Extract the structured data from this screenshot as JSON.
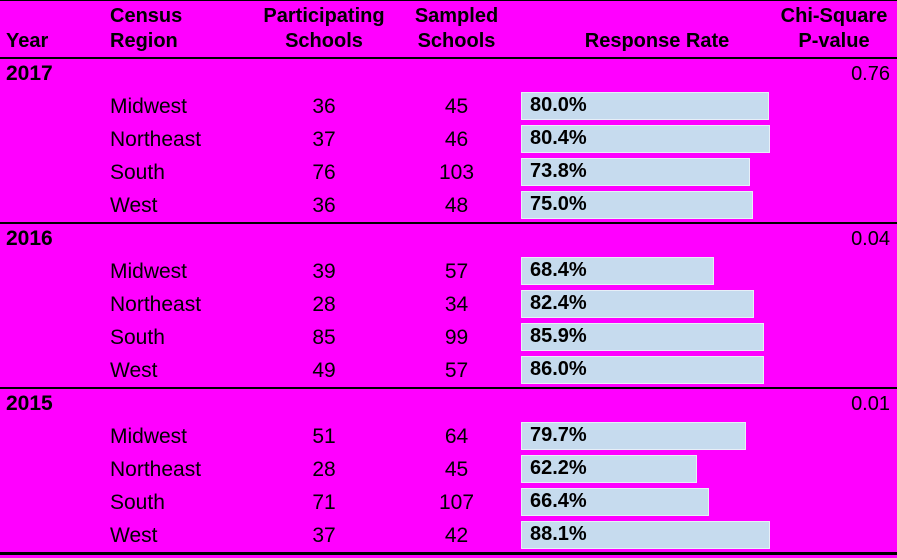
{
  "colors": {
    "background": "#FF00FF",
    "bar_fill": "#C6DBEE",
    "bar_border": "#E7EFF7",
    "rule_lines": "#000000",
    "text": "#000000"
  },
  "table": {
    "header": {
      "year": "Year",
      "region": "Census Region",
      "participating_l1": "Participating",
      "participating_l2": "Schools",
      "sampled_l1": "Sampled",
      "sampled_l2": "Schools",
      "response": "Response Rate",
      "chisq_l1": "Chi-Square",
      "chisq_l2": "P-value"
    },
    "groups": [
      {
        "year": "2017",
        "pvalue": "0.76",
        "rows": [
          {
            "region": "Midwest",
            "participating": "36",
            "sampled": "45",
            "rate": "80.0%",
            "bar_style": "width:248px"
          },
          {
            "region": "Northeast",
            "participating": "37",
            "sampled": "46",
            "rate": "80.4%",
            "bar_style": "width:249px"
          },
          {
            "region": "South",
            "participating": "76",
            "sampled": "103",
            "rate": "73.8%",
            "bar_style": "width:229px"
          },
          {
            "region": "West",
            "participating": "36",
            "sampled": "48",
            "rate": "75.0%",
            "bar_style": "width:232px"
          }
        ]
      },
      {
        "year": "2016",
        "pvalue": "0.04",
        "rows": [
          {
            "region": "Midwest",
            "participating": "39",
            "sampled": "57",
            "rate": "68.4%",
            "bar_style": "width:193px"
          },
          {
            "region": "Northeast",
            "participating": "28",
            "sampled": "34",
            "rate": "82.4%",
            "bar_style": "width:233px"
          },
          {
            "region": "South",
            "participating": "85",
            "sampled": "99",
            "rate": "85.9%",
            "bar_style": "width:243px"
          },
          {
            "region": "West",
            "participating": "49",
            "sampled": "57",
            "rate": "86.0%",
            "bar_style": "width:243px"
          }
        ]
      },
      {
        "year": "2015",
        "pvalue": "0.01",
        "rows": [
          {
            "region": "Midwest",
            "participating": "51",
            "sampled": "64",
            "rate": "79.7%",
            "bar_style": "width:225px"
          },
          {
            "region": "Northeast",
            "participating": "28",
            "sampled": "45",
            "rate": "62.2%",
            "bar_style": "width:176px"
          },
          {
            "region": "South",
            "participating": "71",
            "sampled": "107",
            "rate": "66.4%",
            "bar_style": "width:188px"
          },
          {
            "region": "West",
            "participating": "37",
            "sampled": "42",
            "rate": "88.1%",
            "bar_style": "width:249px"
          }
        ]
      }
    ]
  },
  "chart_data": {
    "type": "table",
    "columns": [
      "Year",
      "Census Region",
      "Participating Schools",
      "Sampled Schools",
      "Response Rate",
      "Chi-Square P-value"
    ],
    "rows": [
      {
        "year": 2017,
        "region": "Midwest",
        "participating_schools": 36,
        "sampled_schools": 45,
        "response_rate_pct": 80.0
      },
      {
        "year": 2017,
        "region": "Northeast",
        "participating_schools": 37,
        "sampled_schools": 46,
        "response_rate_pct": 80.4
      },
      {
        "year": 2017,
        "region": "South",
        "participating_schools": 76,
        "sampled_schools": 103,
        "response_rate_pct": 73.8
      },
      {
        "year": 2017,
        "region": "West",
        "participating_schools": 36,
        "sampled_schools": 48,
        "response_rate_pct": 75.0
      },
      {
        "year": 2016,
        "region": "Midwest",
        "participating_schools": 39,
        "sampled_schools": 57,
        "response_rate_pct": 68.4
      },
      {
        "year": 2016,
        "region": "Northeast",
        "participating_schools": 28,
        "sampled_schools": 34,
        "response_rate_pct": 82.4
      },
      {
        "year": 2016,
        "region": "South",
        "participating_schools": 85,
        "sampled_schools": 99,
        "response_rate_pct": 85.9
      },
      {
        "year": 2016,
        "region": "West",
        "participating_schools": 49,
        "sampled_schools": 57,
        "response_rate_pct": 86.0
      },
      {
        "year": 2015,
        "region": "Midwest",
        "participating_schools": 51,
        "sampled_schools": 64,
        "response_rate_pct": 79.7
      },
      {
        "year": 2015,
        "region": "Northeast",
        "participating_schools": 28,
        "sampled_schools": 45,
        "response_rate_pct": 62.2
      },
      {
        "year": 2015,
        "region": "South",
        "participating_schools": 71,
        "sampled_schools": 107,
        "response_rate_pct": 66.4
      },
      {
        "year": 2015,
        "region": "West",
        "participating_schools": 37,
        "sampled_schools": 42,
        "response_rate_pct": 88.1
      }
    ],
    "group_pvalues": [
      {
        "year": 2017,
        "chi_square_p_value": 0.76
      },
      {
        "year": 2016,
        "chi_square_p_value": 0.04
      },
      {
        "year": 2015,
        "chi_square_p_value": 0.01
      }
    ],
    "bars": {
      "column": "Response Rate",
      "orientation": "horizontal",
      "value_labels_inside": true
    }
  }
}
